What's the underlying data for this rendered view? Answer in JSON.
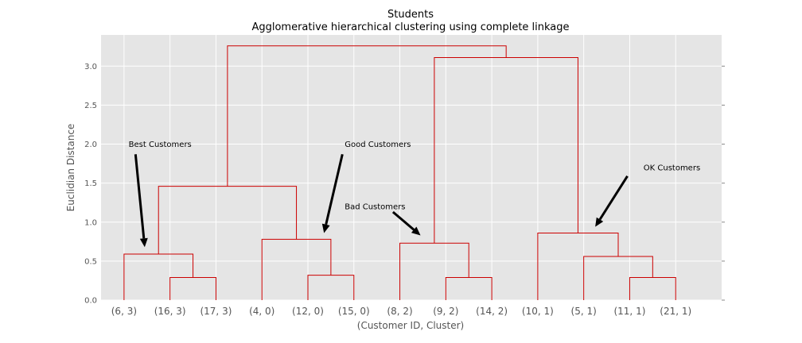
{
  "chart_data": {
    "type": "dendrogram",
    "title": "Students",
    "subtitle": "Agglomerative hierarchical clustering using complete linkage",
    "xlabel": "(Customer ID, Cluster)",
    "ylabel": "Euclidian Distance",
    "ylim": [
      0,
      3.4
    ],
    "yticks": [
      {
        "value": 0.0,
        "label": "0.0"
      },
      {
        "value": 0.5,
        "label": "0.5"
      },
      {
        "value": 1.0,
        "label": "1.0"
      },
      {
        "value": 1.5,
        "label": "1.5"
      },
      {
        "value": 2.0,
        "label": "2.0"
      },
      {
        "value": 2.5,
        "label": "2.5"
      },
      {
        "value": 3.0,
        "label": "3.0"
      }
    ],
    "leaves": [
      "(6, 3)",
      "(16, 3)",
      "(17, 3)",
      "(4, 0)",
      "(12, 0)",
      "(15, 0)",
      "(8, 2)",
      "(9, 2)",
      "(14, 2)",
      "(10, 1)",
      "(5, 1)",
      "(11, 1)",
      "(21, 1)"
    ],
    "merges": [
      {
        "left": 1,
        "right": 2,
        "height": 0.29
      },
      {
        "left": 0,
        "right": 13,
        "height": 0.59
      },
      {
        "left": 4,
        "right": 5,
        "height": 0.32
      },
      {
        "left": 3,
        "right": 15,
        "height": 0.78
      },
      {
        "left": 14,
        "right": 16,
        "height": 1.46
      },
      {
        "left": 7,
        "right": 8,
        "height": 0.29
      },
      {
        "left": 6,
        "right": 18,
        "height": 0.73
      },
      {
        "left": 11,
        "right": 12,
        "height": 0.29
      },
      {
        "left": 10,
        "right": 20,
        "height": 0.56
      },
      {
        "left": 9,
        "right": 21,
        "height": 0.86
      },
      {
        "left": 19,
        "right": 22,
        "height": 3.11
      },
      {
        "left": 17,
        "right": 23,
        "height": 3.26
      }
    ],
    "grid": true,
    "line_color": "#cc0000",
    "background_color": "#e5e5e5",
    "annotations": [
      {
        "text": "Best Customers",
        "text_x": 0.1,
        "text_y": 2.0,
        "arrow_from": [
          0.25,
          1.87
        ],
        "arrow_to": [
          0.45,
          0.68
        ]
      },
      {
        "text": "Good Customers",
        "text_x": 4.8,
        "text_y": 2.0,
        "arrow_from": [
          4.75,
          1.87
        ],
        "arrow_to": [
          4.35,
          0.86
        ]
      },
      {
        "text": "Bad Customers",
        "text_x": 4.8,
        "text_y": 1.2,
        "arrow_from": [
          5.85,
          1.13
        ],
        "arrow_to": [
          6.45,
          0.83
        ]
      },
      {
        "text": "OK Customers",
        "text_x": 11.3,
        "text_y": 1.7,
        "arrow_from": [
          10.95,
          1.59
        ],
        "arrow_to": [
          10.25,
          0.94
        ]
      }
    ]
  }
}
